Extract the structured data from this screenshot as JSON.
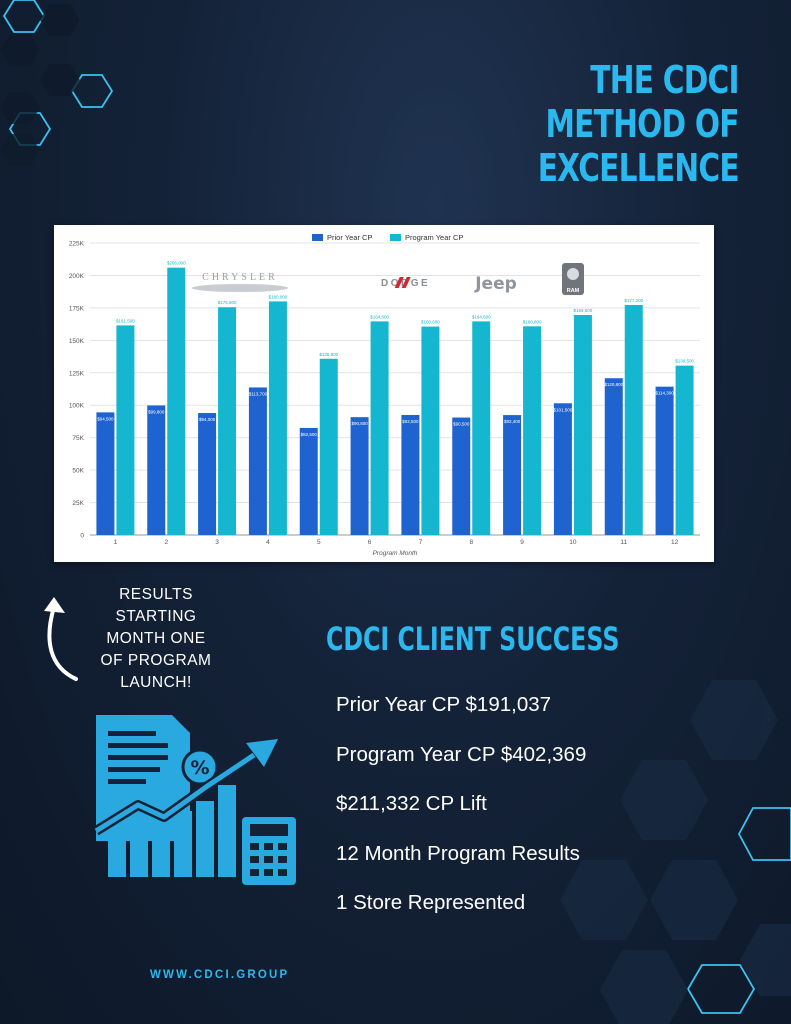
{
  "title": {
    "lines": [
      "THE CDCI",
      "METHOD OF",
      "EXCELLENCE"
    ]
  },
  "chart_data": {
    "type": "bar",
    "categories": [
      "1",
      "2",
      "3",
      "4",
      "5",
      "6",
      "7",
      "8",
      "9",
      "10",
      "11",
      "12"
    ],
    "xlabel": "Program Month",
    "ylabel": "",
    "ylim": [
      0,
      225000
    ],
    "yticks": [
      0,
      25000,
      50000,
      75000,
      100000,
      125000,
      150000,
      175000,
      200000,
      225000
    ],
    "ytick_labels": [
      "0",
      "25K",
      "50K",
      "75K",
      "100K",
      "125K",
      "150K",
      "175K",
      "200K",
      "225K"
    ],
    "legend_position": "top-center",
    "grid": true,
    "series": [
      {
        "name": "Prior Year CP",
        "color": "#1f63d0",
        "values": [
          94500,
          99800,
          94000,
          113700,
          82500,
          90800,
          92500,
          90500,
          92400,
          101500,
          120800,
          114300
        ]
      },
      {
        "name": "Program Year CP",
        "color": "#15b6cf",
        "values": [
          161500,
          206000,
          175500,
          180000,
          135800,
          164600,
          160600,
          164600,
          160800,
          169500,
          177200,
          130500
        ]
      }
    ],
    "brand_logos": [
      "CHRYSLER",
      "DODGE",
      "Jeep",
      "RAM"
    ]
  },
  "side_note": {
    "text": "RESULTS\nSTARTING\nMONTH ONE\nOF PROGRAM\nLAUNCH!"
  },
  "success": {
    "title": "CDCI CLIENT SUCCESS",
    "stats": [
      "Prior Year CP $191,037",
      "Program Year CP $402,369",
      "$211,332 CP Lift",
      "12 Month Program Results",
      "1 Store Represented"
    ]
  },
  "footer": {
    "website": "WWW.CDCI.GROUP"
  },
  "icons": [
    "curved-arrow-icon",
    "report-growth-icon",
    "percent-icon",
    "calculator-icon"
  ],
  "colors": {
    "accent": "#2bb8ee",
    "background": "#142238",
    "illustration": "#2aa8e0"
  }
}
